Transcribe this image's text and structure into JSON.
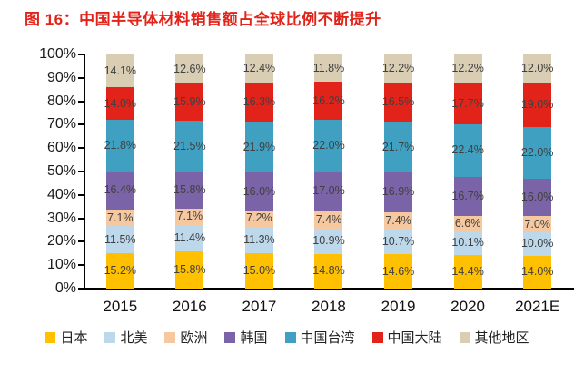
{
  "title": "图 16：中国半导体材料销售额占全球比例不断提升",
  "title_color": "#e2231a",
  "label_color": "#404040",
  "axis_color": "#000000",
  "chart_data": {
    "type": "bar",
    "stacked": true,
    "percent_stacked": true,
    "title": "中国半导体材料销售额占全球比例不断提升",
    "categories": [
      "2015",
      "2016",
      "2017",
      "2018",
      "2019",
      "2020",
      "2021E"
    ],
    "series": [
      {
        "name": "日本",
        "color": "#ffc000",
        "values": [
          15.2,
          15.8,
          15.0,
          14.8,
          14.6,
          14.4,
          14.0
        ]
      },
      {
        "name": "北美",
        "color": "#bdd8ea",
        "values": [
          11.5,
          11.4,
          11.3,
          10.9,
          10.7,
          10.1,
          10.0
        ]
      },
      {
        "name": "欧洲",
        "color": "#f6c8a0",
        "values": [
          7.1,
          7.1,
          7.2,
          7.4,
          7.4,
          6.6,
          7.0
        ]
      },
      {
        "name": "韩国",
        "color": "#7a63a6",
        "values": [
          16.4,
          15.8,
          16.0,
          17.0,
          16.9,
          16.7,
          16.0
        ]
      },
      {
        "name": "中国台湾",
        "color": "#3fa0c2",
        "values": [
          21.8,
          21.5,
          21.9,
          22.0,
          21.7,
          22.4,
          22.0
        ]
      },
      {
        "name": "中国大陆",
        "color": "#e2231a",
        "values": [
          14.0,
          15.9,
          16.3,
          16.2,
          16.5,
          17.7,
          19.0
        ]
      },
      {
        "name": "其他地区",
        "color": "#d9cdb3",
        "values": [
          14.1,
          12.6,
          12.4,
          11.8,
          12.2,
          12.2,
          12.0
        ]
      }
    ],
    "xlabel": "",
    "ylabel": "",
    "ylim": [
      0,
      100
    ],
    "ytick_step": 10,
    "ytick_labels": [
      "0%",
      "10%",
      "20%",
      "30%",
      "40%",
      "50%",
      "60%",
      "70%",
      "80%",
      "90%",
      "100%"
    ],
    "value_suffix": "%",
    "grid": false,
    "legend_position": "bottom"
  }
}
